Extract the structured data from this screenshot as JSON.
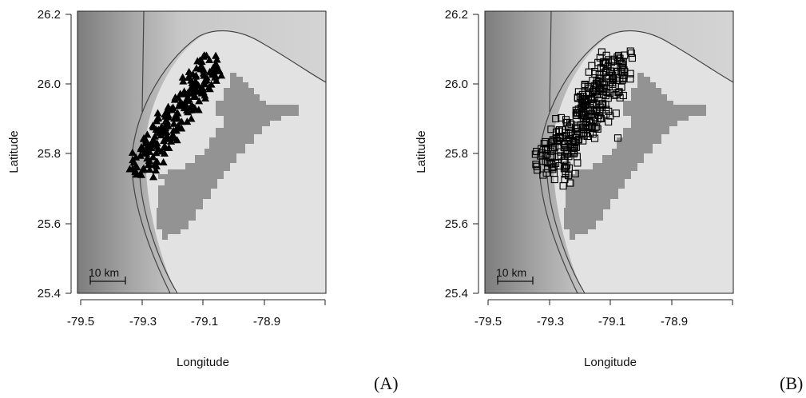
{
  "figure": {
    "x_title": "Longitude",
    "y_title": "Latitude",
    "x_ticks": [
      "-79.5",
      "-79.3",
      "-79.1",
      "-78.9"
    ],
    "y_ticks": [
      "26.2",
      "26.0",
      "25.8",
      "25.6",
      "25.4"
    ],
    "scale_bar_label": "10 km"
  },
  "panels": [
    {
      "id": "A",
      "label": "(A)",
      "marker": "filled-triangle"
    },
    {
      "id": "B",
      "label": "(B)",
      "marker": "open-square"
    }
  ],
  "colors": {
    "deep_water_dark": "#8a8a8a",
    "water_light": "#cfcfcf",
    "bank_area": "#e0e0e0",
    "island": "#939393",
    "marker": "#000000"
  }
}
